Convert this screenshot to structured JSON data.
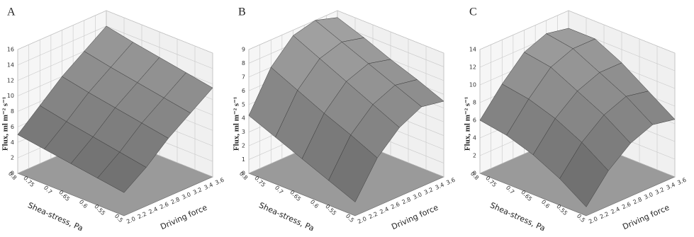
{
  "chart_data": [
    {
      "type": "surface",
      "panel_label": "A",
      "zlabel": "Flux, ml m⁻² s⁻¹",
      "xlabel": "Driving force",
      "ylabel": "Shea-stress, Pa",
      "xlim": [
        2.0,
        3.6
      ],
      "xticks": [
        {
          "value": 2.0,
          "label": "2.0"
        },
        2.2,
        2.4,
        2.6,
        2.8,
        {
          "value": 3.0,
          "label": "3.0"
        },
        3.2,
        3.4,
        3.6
      ],
      "ylim": [
        0.5,
        0.8
      ],
      "yticks": [
        0.5,
        0.55,
        0.6,
        0.65,
        0.7,
        0.75,
        0.8
      ],
      "zlim": [
        0,
        16
      ],
      "zticks": [
        0,
        2,
        4,
        6,
        8,
        10,
        12,
        14,
        16
      ],
      "x": [
        2.0,
        2.4,
        2.8,
        3.2,
        3.6
      ],
      "y": [
        0.5,
        0.575,
        0.65,
        0.725,
        0.8
      ],
      "z": [
        [
          3,
          5,
          7.5,
          9.5,
          11.5
        ],
        [
          3.5,
          5.6,
          8.1,
          10.1,
          12.1
        ],
        [
          4,
          6.2,
          8.7,
          10.7,
          12.7
        ],
        [
          4.5,
          6.8,
          9.3,
          11.3,
          13.3
        ],
        [
          5,
          7.5,
          10,
          12,
          14
        ]
      ]
    },
    {
      "type": "surface",
      "panel_label": "B",
      "zlabel": "Flux, ml m⁻² s⁻¹",
      "xlabel": "Driving force",
      "ylabel": "Shea-stress, Pa",
      "xlim": [
        2.0,
        3.6
      ],
      "xticks": [
        {
          "value": 2.0,
          "label": "2.0"
        },
        2.2,
        2.4,
        2.6,
        2.8,
        {
          "value": 3.0,
          "label": "3.0"
        },
        3.2,
        3.4,
        3.6
      ],
      "ylim": [
        0.5,
        0.8
      ],
      "yticks": [
        0.5,
        0.55,
        0.6,
        0.65,
        0.7,
        0.75,
        0.8
      ],
      "zlim": [
        0,
        9
      ],
      "zticks": [
        0,
        1,
        2,
        3,
        4,
        5,
        6,
        7,
        8,
        9
      ],
      "x": [
        2.0,
        2.4,
        2.8,
        3.2,
        3.6
      ],
      "y": [
        0.5,
        0.575,
        0.65,
        0.725,
        0.8
      ],
      "z": [
        [
          1,
          3.5,
          5,
          5.8,
          5.5
        ],
        [
          1.8,
          4.4,
          5.9,
          6.6,
          6.3
        ],
        [
          2.6,
          5.2,
          6.8,
          7.4,
          7
        ],
        [
          3.4,
          6.1,
          7.7,
          8.2,
          7.8
        ],
        [
          4.2,
          7,
          8.6,
          9,
          8.5
        ]
      ]
    },
    {
      "type": "surface",
      "panel_label": "C",
      "zlabel": "Flux, ml m⁻² s⁻¹",
      "xlabel": "Driving force",
      "ylabel": "Shea-stress, Pa",
      "xlim": [
        2.0,
        3.6
      ],
      "xticks": [
        {
          "value": 2.0,
          "label": "2.0"
        },
        2.2,
        2.4,
        2.6,
        2.8,
        {
          "value": 3.0,
          "label": "3.0"
        },
        3.2,
        3.4,
        3.6
      ],
      "ylim": [
        0.5,
        0.8
      ],
      "yticks": [
        0.5,
        0.55,
        0.6,
        0.65,
        0.7,
        0.75,
        0.8
      ],
      "zlim": [
        0,
        14
      ],
      "zticks": [
        0,
        2,
        4,
        6,
        8,
        10,
        12,
        14
      ],
      "x": [
        2.0,
        2.4,
        2.8,
        3.2,
        3.6
      ],
      "y": [
        0.5,
        0.575,
        0.65,
        0.725,
        0.8
      ],
      "z": [
        [
          1,
          4,
          6,
          7,
          6.5
        ],
        [
          3,
          6,
          8,
          9,
          8.5
        ],
        [
          4.5,
          7.5,
          9.5,
          10.5,
          10.5
        ],
        [
          5.5,
          8.5,
          11,
          12,
          12
        ],
        [
          6,
          9,
          11.5,
          12.5,
          12
        ]
      ]
    }
  ]
}
